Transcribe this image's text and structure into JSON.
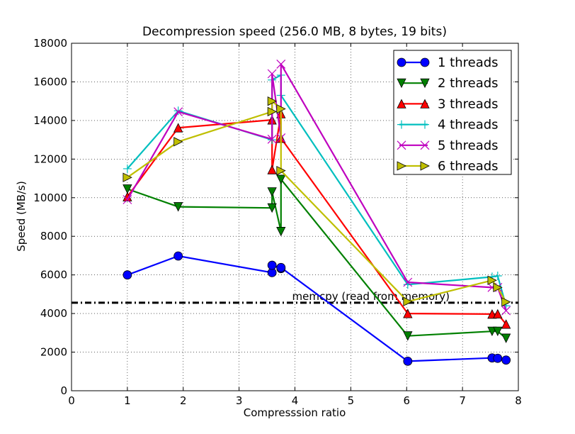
{
  "chart_data": {
    "type": "line",
    "title": "Decompression speed (256.0 MB, 8 bytes, 19 bits)",
    "xlabel": "Compresssion ratio",
    "ylabel": "Speed (MB/s)",
    "xlim": [
      0,
      8
    ],
    "ylim": [
      0,
      18000
    ],
    "xticks": [
      0,
      1,
      2,
      3,
      4,
      5,
      6,
      7,
      8
    ],
    "yticks": [
      0,
      2000,
      4000,
      6000,
      8000,
      10000,
      12000,
      14000,
      16000,
      18000
    ],
    "grid": true,
    "legend_position": "top-right",
    "reference_line": {
      "label": "memcpy (read from memory)",
      "y": 4560,
      "color": "#000000"
    },
    "series": [
      {
        "name": "1 threads",
        "color": "#0000ff",
        "marker": "circle",
        "x": [
          1.0,
          1.91,
          3.59,
          3.59,
          3.75,
          3.75,
          6.02,
          7.53,
          7.63,
          7.78
        ],
        "y": [
          6000,
          6980,
          6120,
          6500,
          6330,
          6380,
          1530,
          1700,
          1680,
          1590
        ]
      },
      {
        "name": "2 threads",
        "color": "#008000",
        "marker": "triangle-down",
        "x": [
          1.0,
          1.91,
          3.59,
          3.59,
          3.75,
          3.75,
          6.02,
          7.53,
          7.63,
          7.78
        ],
        "y": [
          10450,
          9530,
          9470,
          10300,
          8250,
          10950,
          2840,
          3080,
          3080,
          2720
        ]
      },
      {
        "name": "3 threads",
        "color": "#ff0000",
        "marker": "triangle-up",
        "x": [
          1.0,
          1.91,
          3.59,
          3.59,
          3.75,
          3.75,
          6.02,
          7.53,
          7.63,
          7.78
        ],
        "y": [
          10050,
          13620,
          14030,
          11450,
          14350,
          13080,
          4000,
          3970,
          3980,
          3450
        ]
      },
      {
        "name": "4 threads",
        "color": "#00bfbf",
        "marker": "plus",
        "x": [
          1.0,
          1.91,
          3.59,
          3.59,
          3.75,
          3.75,
          6.02,
          7.53,
          7.63,
          7.78
        ],
        "y": [
          11500,
          14500,
          13000,
          16100,
          16350,
          15300,
          5500,
          5900,
          5950,
          4400
        ]
      },
      {
        "name": "5 threads",
        "color": "#bf00bf",
        "marker": "x",
        "x": [
          1.0,
          1.91,
          3.59,
          3.59,
          3.75,
          3.75,
          6.02,
          7.53,
          7.63,
          7.78
        ],
        "y": [
          9900,
          14450,
          13030,
          16420,
          13100,
          16920,
          5620,
          5350,
          5350,
          4150
        ]
      },
      {
        "name": "6 threads",
        "color": "#bfbf00",
        "marker": "triangle-right",
        "x": [
          1.0,
          1.91,
          3.59,
          3.59,
          3.75,
          3.75,
          6.02,
          7.53,
          7.63,
          7.78
        ],
        "y": [
          11050,
          12900,
          14460,
          15000,
          14600,
          11400,
          4620,
          5720,
          5350,
          4600
        ]
      }
    ]
  }
}
